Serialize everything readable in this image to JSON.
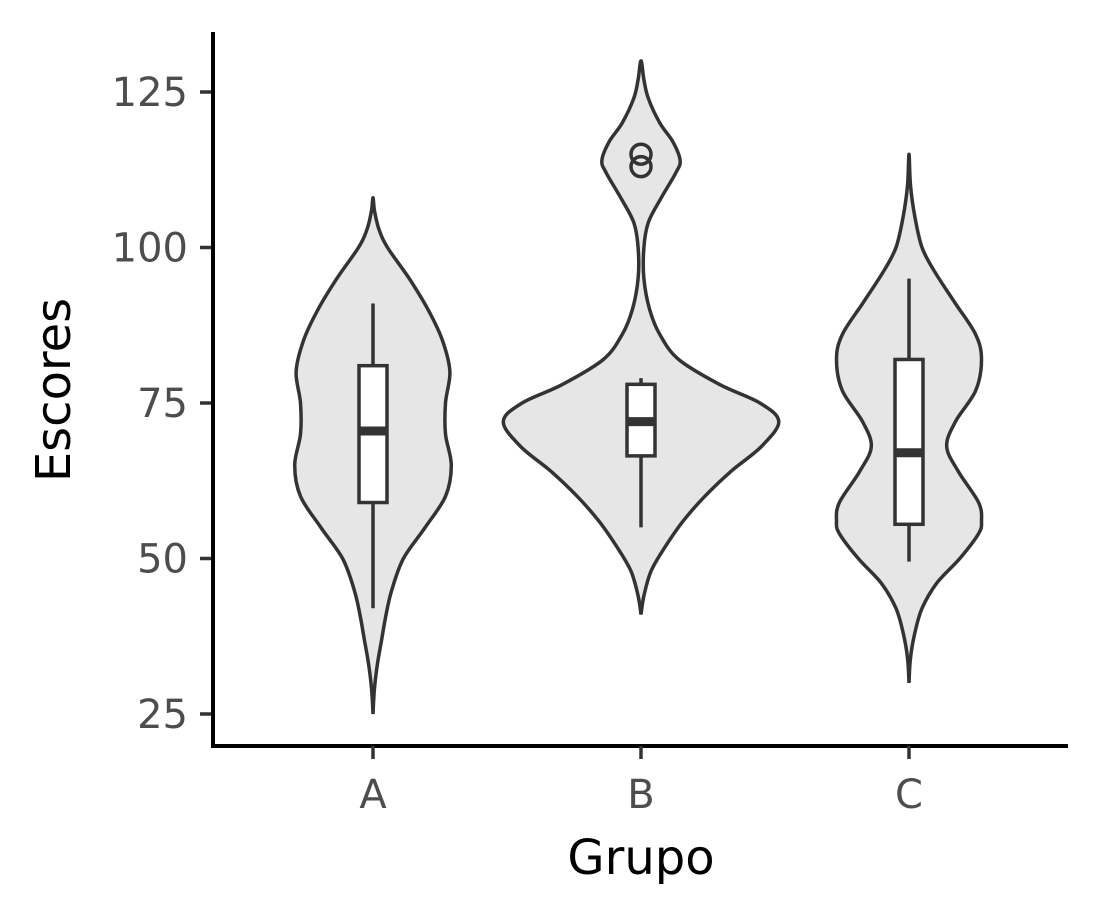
{
  "chart_data": {
    "type": "violin",
    "xlabel": "Grupo",
    "ylabel": "Escores",
    "categories": [
      "A",
      "B",
      "C"
    ],
    "ylim": [
      22,
      135
    ],
    "yticks": [
      25,
      50,
      75,
      100,
      125
    ],
    "grid": false,
    "colors": {
      "fill": "#e6e6e6",
      "stroke": "#333333",
      "box_fill": "#ffffff"
    },
    "groups": [
      {
        "name": "A",
        "violin_range": [
          25,
          108
        ],
        "density_profile": [
          [
            25,
            0.0
          ],
          [
            29,
            0.01
          ],
          [
            33,
            0.03
          ],
          [
            37,
            0.06
          ],
          [
            41,
            0.09
          ],
          [
            45,
            0.13
          ],
          [
            50,
            0.21
          ],
          [
            55,
            0.36
          ],
          [
            60,
            0.5
          ],
          [
            65,
            0.54
          ],
          [
            70,
            0.5
          ],
          [
            75,
            0.5
          ],
          [
            80,
            0.53
          ],
          [
            85,
            0.48
          ],
          [
            90,
            0.38
          ],
          [
            95,
            0.25
          ],
          [
            100,
            0.1
          ],
          [
            103,
            0.04
          ],
          [
            106,
            0.01
          ],
          [
            108,
            0.0
          ]
        ],
        "box": {
          "whisker_low": 42,
          "q1": 59,
          "median": 70.5,
          "q3": 81,
          "whisker_high": 91
        },
        "outliers": []
      },
      {
        "name": "B",
        "violin_range": [
          41,
          130
        ],
        "density_profile": [
          [
            41,
            0.0
          ],
          [
            44,
            0.02
          ],
          [
            48,
            0.07
          ],
          [
            52,
            0.17
          ],
          [
            56,
            0.29
          ],
          [
            60,
            0.44
          ],
          [
            64,
            0.62
          ],
          [
            68,
            0.83
          ],
          [
            72,
            0.95
          ],
          [
            75,
            0.82
          ],
          [
            78,
            0.54
          ],
          [
            82,
            0.26
          ],
          [
            86,
            0.13
          ],
          [
            90,
            0.06
          ],
          [
            95,
            0.02
          ],
          [
            100,
            0.02
          ],
          [
            104,
            0.05
          ],
          [
            108,
            0.14
          ],
          [
            112,
            0.24
          ],
          [
            114,
            0.27
          ],
          [
            117,
            0.22
          ],
          [
            120,
            0.13
          ],
          [
            124,
            0.05
          ],
          [
            127,
            0.02
          ],
          [
            130,
            0.0
          ]
        ],
        "box": {
          "whisker_low": 55,
          "q1": 66.5,
          "median": 72,
          "q3": 78,
          "whisker_high": 79
        },
        "outliers": [
          113,
          115
        ]
      },
      {
        "name": "C",
        "violin_range": [
          30,
          115
        ],
        "density_profile": [
          [
            30,
            0.0
          ],
          [
            34,
            0.01
          ],
          [
            38,
            0.04
          ],
          [
            42,
            0.09
          ],
          [
            46,
            0.19
          ],
          [
            50,
            0.35
          ],
          [
            54,
            0.48
          ],
          [
            56,
            0.5
          ],
          [
            59,
            0.48
          ],
          [
            64,
            0.34
          ],
          [
            68,
            0.26
          ],
          [
            72,
            0.32
          ],
          [
            77,
            0.46
          ],
          [
            82,
            0.5
          ],
          [
            86,
            0.46
          ],
          [
            91,
            0.32
          ],
          [
            96,
            0.18
          ],
          [
            100,
            0.09
          ],
          [
            105,
            0.04
          ],
          [
            110,
            0.01
          ],
          [
            115,
            0.0
          ]
        ],
        "box": {
          "whisker_low": 49.5,
          "q1": 55.5,
          "median": 67,
          "q3": 82,
          "whisker_high": 95
        },
        "outliers": []
      }
    ]
  }
}
